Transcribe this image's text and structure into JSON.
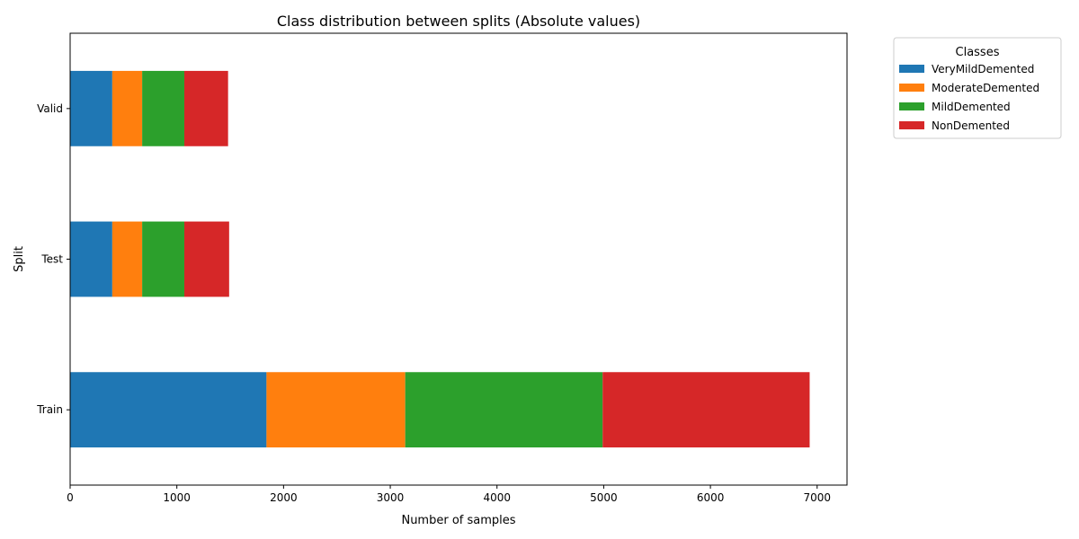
{
  "chart_data": {
    "type": "bar",
    "orientation": "horizontal",
    "stacked": true,
    "title": "Class distribution between splits (Absolute values)",
    "xlabel": "Number of samples",
    "ylabel": "Split",
    "xlim": [
      0,
      7280
    ],
    "xticks": [
      0,
      1000,
      2000,
      3000,
      4000,
      5000,
      6000,
      7000
    ],
    "categories": [
      "Train",
      "Test",
      "Valid"
    ],
    "series": [
      {
        "name": "VeryMildDemented",
        "color": "#1f77b4",
        "values": [
          1840,
          395,
          395
        ]
      },
      {
        "name": "ModerateDemented",
        "color": "#ff7f0e",
        "values": [
          1300,
          280,
          280
        ]
      },
      {
        "name": "MildDemented",
        "color": "#2ca02c",
        "values": [
          1850,
          395,
          395
        ]
      },
      {
        "name": "NonDemented",
        "color": "#d62728",
        "values": [
          1940,
          420,
          410
        ]
      }
    ],
    "legend": {
      "title": "Classes",
      "position": "outside-top-right"
    },
    "grid": false
  }
}
